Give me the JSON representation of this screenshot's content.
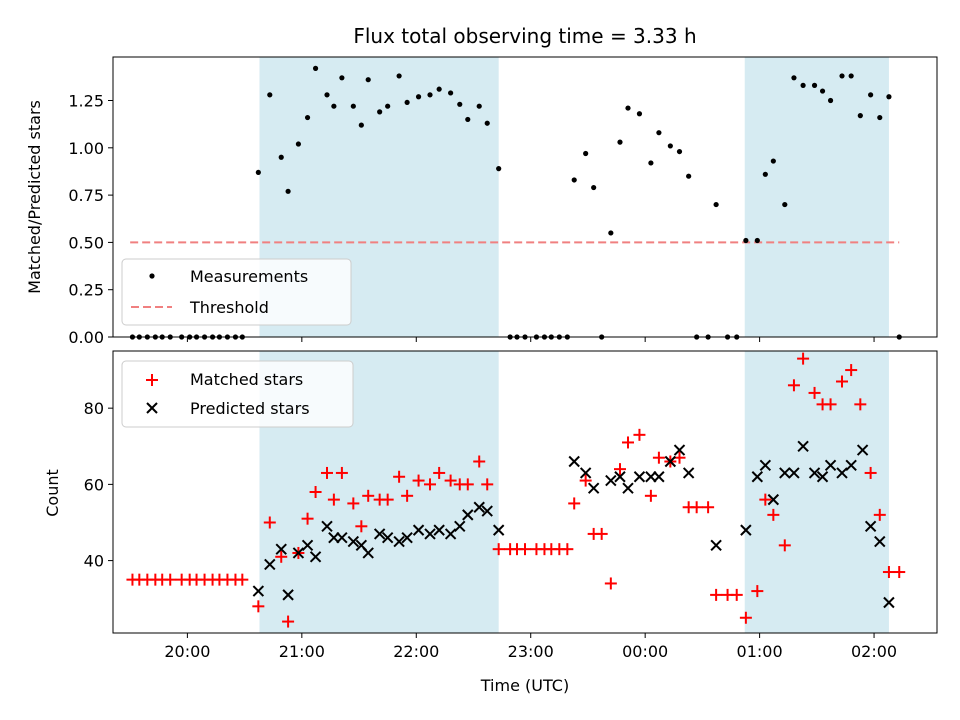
{
  "chart_data": {
    "type": "scatter",
    "title": "Flux total observing time = 3.33 h",
    "xlabel": "Time (UTC)",
    "x_ticks": [
      "20:00",
      "21:00",
      "22:00",
      "23:00",
      "00:00",
      "01:00",
      "02:00"
    ],
    "x_tick_hours": [
      20,
      21,
      22,
      23,
      24,
      25,
      26
    ],
    "x_range_hours": [
      19.35,
      26.55
    ],
    "shaded_regions_hours": [
      [
        20.63,
        22.72
      ],
      [
        24.87,
        26.13
      ]
    ],
    "shade_color": "#add8e6",
    "top_panel": {
      "ylabel": "Matched/Predicted stars",
      "ylim": [
        0,
        1.48
      ],
      "y_ticks": [
        "0.00",
        "0.25",
        "0.50",
        "0.75",
        "1.00",
        "1.25"
      ],
      "y_tick_values": [
        0,
        0.25,
        0.5,
        0.75,
        1.0,
        1.25
      ],
      "legend": [
        "Measurements",
        "Threshold"
      ],
      "threshold": {
        "value": 0.5,
        "x_start": 19.5,
        "x_end": 26.22,
        "color": "#f08080"
      },
      "measurements": [
        [
          19.52,
          0
        ],
        [
          19.58,
          0
        ],
        [
          19.65,
          0
        ],
        [
          19.72,
          0
        ],
        [
          19.78,
          0
        ],
        [
          19.85,
          0
        ],
        [
          19.95,
          0
        ],
        [
          20.02,
          0
        ],
        [
          20.08,
          0
        ],
        [
          20.15,
          0
        ],
        [
          20.22,
          0
        ],
        [
          20.28,
          0
        ],
        [
          20.35,
          0
        ],
        [
          20.42,
          0
        ],
        [
          20.48,
          0
        ],
        [
          20.62,
          0.87
        ],
        [
          20.72,
          1.28
        ],
        [
          20.82,
          0.95
        ],
        [
          20.88,
          0.77
        ],
        [
          20.97,
          1.02
        ],
        [
          21.05,
          1.16
        ],
        [
          21.12,
          1.42
        ],
        [
          21.22,
          1.28
        ],
        [
          21.28,
          1.22
        ],
        [
          21.35,
          1.37
        ],
        [
          21.45,
          1.22
        ],
        [
          21.52,
          1.12
        ],
        [
          21.58,
          1.36
        ],
        [
          21.68,
          1.19
        ],
        [
          21.75,
          1.22
        ],
        [
          21.85,
          1.38
        ],
        [
          21.92,
          1.24
        ],
        [
          22.02,
          1.27
        ],
        [
          22.12,
          1.28
        ],
        [
          22.2,
          1.31
        ],
        [
          22.3,
          1.29
        ],
        [
          22.38,
          1.23
        ],
        [
          22.45,
          1.15
        ],
        [
          22.55,
          1.22
        ],
        [
          22.62,
          1.13
        ],
        [
          22.72,
          0.89
        ],
        [
          22.82,
          0
        ],
        [
          22.88,
          0
        ],
        [
          22.95,
          0
        ],
        [
          23.05,
          0
        ],
        [
          23.12,
          0
        ],
        [
          23.18,
          0
        ],
        [
          23.25,
          0
        ],
        [
          23.32,
          0
        ],
        [
          23.38,
          0.83
        ],
        [
          23.48,
          0.97
        ],
        [
          23.55,
          0.79
        ],
        [
          23.62,
          0
        ],
        [
          23.7,
          0.55
        ],
        [
          23.78,
          1.03
        ],
        [
          23.85,
          1.21
        ],
        [
          23.95,
          1.18
        ],
        [
          24.05,
          0.92
        ],
        [
          24.12,
          1.08
        ],
        [
          24.22,
          1.01
        ],
        [
          24.3,
          0.98
        ],
        [
          24.38,
          0.85
        ],
        [
          24.45,
          0
        ],
        [
          24.55,
          0
        ],
        [
          24.62,
          0.7
        ],
        [
          24.72,
          0
        ],
        [
          24.8,
          0
        ],
        [
          24.88,
          0.51
        ],
        [
          24.98,
          0.51
        ],
        [
          25.05,
          0.86
        ],
        [
          25.12,
          0.93
        ],
        [
          25.22,
          0.7
        ],
        [
          25.3,
          1.37
        ],
        [
          25.38,
          1.33
        ],
        [
          25.48,
          1.33
        ],
        [
          25.55,
          1.3
        ],
        [
          25.62,
          1.25
        ],
        [
          25.72,
          1.38
        ],
        [
          25.8,
          1.38
        ],
        [
          25.88,
          1.17
        ],
        [
          25.97,
          1.28
        ],
        [
          26.05,
          1.16
        ],
        [
          26.13,
          1.27
        ],
        [
          26.22,
          0
        ]
      ]
    },
    "bottom_panel": {
      "ylabel": "Count",
      "ylim": [
        21,
        95
      ],
      "y_ticks": [
        "40",
        "60",
        "80"
      ],
      "y_tick_values": [
        40,
        60,
        80
      ],
      "legend": [
        "Matched stars",
        "Predicted stars"
      ],
      "series": [
        {
          "name": "Matched stars",
          "marker": "plus",
          "color": "#ff0000",
          "points": [
            [
              19.52,
              35
            ],
            [
              19.58,
              35
            ],
            [
              19.65,
              35
            ],
            [
              19.72,
              35
            ],
            [
              19.78,
              35
            ],
            [
              19.85,
              35
            ],
            [
              19.95,
              35
            ],
            [
              20.02,
              35
            ],
            [
              20.08,
              35
            ],
            [
              20.15,
              35
            ],
            [
              20.22,
              35
            ],
            [
              20.28,
              35
            ],
            [
              20.35,
              35
            ],
            [
              20.42,
              35
            ],
            [
              20.48,
              35
            ],
            [
              20.62,
              28
            ],
            [
              20.72,
              50
            ],
            [
              20.82,
              41
            ],
            [
              20.88,
              24
            ],
            [
              20.97,
              42
            ],
            [
              21.05,
              51
            ],
            [
              21.12,
              58
            ],
            [
              21.22,
              63
            ],
            [
              21.28,
              56
            ],
            [
              21.35,
              63
            ],
            [
              21.45,
              55
            ],
            [
              21.52,
              49
            ],
            [
              21.58,
              57
            ],
            [
              21.68,
              56
            ],
            [
              21.75,
              56
            ],
            [
              21.85,
              62
            ],
            [
              21.92,
              57
            ],
            [
              22.02,
              61
            ],
            [
              22.12,
              60
            ],
            [
              22.2,
              63
            ],
            [
              22.3,
              61
            ],
            [
              22.38,
              60
            ],
            [
              22.45,
              60
            ],
            [
              22.55,
              66
            ],
            [
              22.62,
              60
            ],
            [
              22.72,
              43
            ],
            [
              22.82,
              43
            ],
            [
              22.88,
              43
            ],
            [
              22.95,
              43
            ],
            [
              23.05,
              43
            ],
            [
              23.12,
              43
            ],
            [
              23.18,
              43
            ],
            [
              23.25,
              43
            ],
            [
              23.32,
              43
            ],
            [
              23.38,
              55
            ],
            [
              23.48,
              61
            ],
            [
              23.55,
              47
            ],
            [
              23.62,
              47
            ],
            [
              23.7,
              34
            ],
            [
              23.78,
              64
            ],
            [
              23.85,
              71
            ],
            [
              23.95,
              73
            ],
            [
              24.05,
              57
            ],
            [
              24.12,
              67
            ],
            [
              24.22,
              66
            ],
            [
              24.3,
              67
            ],
            [
              24.38,
              54
            ],
            [
              24.45,
              54
            ],
            [
              24.55,
              54
            ],
            [
              24.62,
              31
            ],
            [
              24.72,
              31
            ],
            [
              24.8,
              31
            ],
            [
              24.88,
              25
            ],
            [
              24.98,
              32
            ],
            [
              25.05,
              56
            ],
            [
              25.12,
              52
            ],
            [
              25.22,
              44
            ],
            [
              25.3,
              86
            ],
            [
              25.38,
              93
            ],
            [
              25.48,
              84
            ],
            [
              25.55,
              81
            ],
            [
              25.62,
              81
            ],
            [
              25.72,
              87
            ],
            [
              25.8,
              90
            ],
            [
              25.88,
              81
            ],
            [
              25.97,
              63
            ],
            [
              26.05,
              52
            ],
            [
              26.13,
              37
            ],
            [
              26.22,
              37
            ]
          ]
        },
        {
          "name": "Predicted stars",
          "marker": "x",
          "color": "#000000",
          "points": [
            [
              20.62,
              32
            ],
            [
              20.72,
              39
            ],
            [
              20.82,
              43
            ],
            [
              20.88,
              31
            ],
            [
              20.97,
              42
            ],
            [
              21.05,
              44
            ],
            [
              21.12,
              41
            ],
            [
              21.22,
              49
            ],
            [
              21.28,
              46
            ],
            [
              21.35,
              46
            ],
            [
              21.45,
              45
            ],
            [
              21.52,
              44
            ],
            [
              21.58,
              42
            ],
            [
              21.68,
              47
            ],
            [
              21.75,
              46
            ],
            [
              21.85,
              45
            ],
            [
              21.92,
              46
            ],
            [
              22.02,
              48
            ],
            [
              22.12,
              47
            ],
            [
              22.2,
              48
            ],
            [
              22.3,
              47
            ],
            [
              22.38,
              49
            ],
            [
              22.45,
              52
            ],
            [
              22.55,
              54
            ],
            [
              22.62,
              53
            ],
            [
              22.72,
              48
            ],
            [
              23.38,
              66
            ],
            [
              23.48,
              63
            ],
            [
              23.55,
              59
            ],
            [
              23.7,
              61
            ],
            [
              23.78,
              62
            ],
            [
              23.85,
              59
            ],
            [
              23.95,
              62
            ],
            [
              24.05,
              62
            ],
            [
              24.12,
              62
            ],
            [
              24.22,
              66
            ],
            [
              24.3,
              69
            ],
            [
              24.38,
              63
            ],
            [
              24.62,
              44
            ],
            [
              24.88,
              48
            ],
            [
              24.98,
              62
            ],
            [
              25.05,
              65
            ],
            [
              25.12,
              56
            ],
            [
              25.22,
              63
            ],
            [
              25.3,
              63
            ],
            [
              25.38,
              70
            ],
            [
              25.48,
              63
            ],
            [
              25.55,
              62
            ],
            [
              25.62,
              65
            ],
            [
              25.72,
              63
            ],
            [
              25.8,
              65
            ],
            [
              25.9,
              69
            ],
            [
              25.97,
              49
            ],
            [
              26.05,
              45
            ],
            [
              26.13,
              29
            ]
          ]
        }
      ]
    }
  }
}
